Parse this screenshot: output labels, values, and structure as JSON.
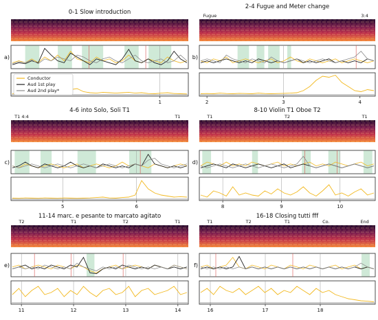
{
  "colors": {
    "conductor": "#f2b81e",
    "aud1": "#222222",
    "aud2": "#8c8c8c",
    "marker": "#d9534f",
    "band": "#cfe9d7",
    "grid": "#9a9a9a"
  },
  "legend": {
    "conductor": "Conductor",
    "aud1": "Aud 1st play",
    "aud2": "Aud 2nd play*"
  },
  "chart_data": [
    {
      "type": "line",
      "label": "a)",
      "title": "0-1 Slow introduction",
      "markers": [],
      "xlim": [
        -0.05,
        1.2
      ],
      "xticks": [
        1
      ],
      "bands": [
        [
          0.05,
          0.15
        ],
        [
          0.28,
          0.38
        ],
        [
          0.45,
          0.6
        ],
        [
          0.75,
          0.85
        ],
        [
          0.92,
          1.08
        ]
      ],
      "vlines": [
        0.5,
        0.9
      ],
      "grid_x": [
        1
      ],
      "series": [
        {
          "name": "Conductor",
          "values": [
            0.2,
            0.3,
            0.2,
            0.4,
            0.2,
            0.5,
            0.3,
            0.6,
            0.3,
            0.8,
            0.4,
            0.3,
            0.2,
            0.5,
            0.3,
            0.4,
            0.2,
            0.3,
            0.6,
            0.3,
            0.2,
            0.4,
            0.3,
            0.2,
            0.5,
            0.3,
            0.2,
            0.3
          ]
        },
        {
          "name": "Aud 1st play",
          "values": [
            0.1,
            0.2,
            0.15,
            0.3,
            0.2,
            0.95,
            0.6,
            0.3,
            0.2,
            0.7,
            0.5,
            0.3,
            0.1,
            0.4,
            0.3,
            0.2,
            0.1,
            0.4,
            0.9,
            0.3,
            0.2,
            0.4,
            0.2,
            0.1,
            0.3,
            0.8,
            0.4,
            0.2
          ]
        },
        {
          "name": "Aud 2nd play*",
          "values": [
            0.15,
            0.25,
            0.2,
            0.35,
            0.15,
            0.4,
            0.3,
            0.5,
            0.4,
            0.3,
            0.6,
            0.5,
            0.3,
            0.2,
            0.4,
            0.5,
            0.3,
            0.2,
            0.4,
            0.6,
            0.3,
            0.2,
            0.3,
            0.4,
            0.2,
            0.3,
            0.6,
            0.3
          ]
        }
      ],
      "activity": [
        0.05,
        0.08,
        0.1,
        0.06,
        0.12,
        0.08,
        0.1,
        0.15,
        0.2,
        0.25,
        0.3,
        0.15,
        0.1,
        0.08,
        0.12,
        0.1,
        0.08,
        0.1,
        0.12,
        0.08,
        0.1,
        0.06,
        0.05,
        0.08,
        0.1,
        0.06,
        0.05,
        0.04
      ]
    },
    {
      "type": "line",
      "label": "b)",
      "title": "2-4 Fugue and Meter change",
      "markers": [
        "Fugue",
        "3:4"
      ],
      "xlim": [
        1.9,
        4.2
      ],
      "xticks": [
        2,
        3,
        4
      ],
      "bands": [
        [
          2.4,
          2.55
        ],
        [
          2.65,
          2.75
        ],
        [
          2.8,
          2.95
        ],
        [
          3.05,
          3.1
        ]
      ],
      "vlines": [
        3.95
      ],
      "grid_x": [
        3
      ],
      "series": [
        {
          "name": "Conductor",
          "values": [
            0.3,
            0.2,
            0.4,
            0.3,
            0.5,
            0.2,
            0.3,
            0.4,
            0.3,
            0.2,
            0.3,
            0.4,
            0.2,
            0.3,
            0.5,
            0.3,
            0.2,
            0.4,
            0.3,
            0.2,
            0.3,
            0.4,
            0.2,
            0.3,
            0.4,
            0.3,
            0.2,
            0.3
          ]
        },
        {
          "name": "Aud 1st play",
          "values": [
            0.2,
            0.3,
            0.2,
            0.3,
            0.4,
            0.3,
            0.2,
            0.3,
            0.2,
            0.4,
            0.3,
            0.2,
            0.3,
            0.2,
            0.3,
            0.4,
            0.2,
            0.3,
            0.2,
            0.3,
            0.4,
            0.2,
            0.3,
            0.2,
            0.3,
            0.2,
            0.4,
            0.3
          ]
        },
        {
          "name": "Aud 2nd play*",
          "values": [
            0.3,
            0.4,
            0.3,
            0.2,
            0.6,
            0.4,
            0.3,
            0.2,
            0.4,
            0.3,
            0.2,
            0.5,
            0.3,
            0.2,
            0.3,
            0.4,
            0.3,
            0.2,
            0.3,
            0.4,
            0.3,
            0.2,
            0.3,
            0.4,
            0.5,
            0.8,
            0.4,
            0.3
          ]
        }
      ],
      "activity": [
        0.05,
        0.06,
        0.05,
        0.08,
        0.06,
        0.05,
        0.07,
        0.06,
        0.05,
        0.08,
        0.06,
        0.05,
        0.06,
        0.07,
        0.08,
        0.1,
        0.2,
        0.4,
        0.7,
        0.9,
        0.85,
        0.95,
        0.6,
        0.4,
        0.2,
        0.15,
        0.25,
        0.2
      ]
    },
    {
      "type": "line",
      "label": "c)",
      "title": "4-6 into Solo, Soli T1",
      "markers": [
        "T1 4:4",
        "T1"
      ],
      "xlim": [
        4.3,
        6.7
      ],
      "xticks": [
        5,
        6
      ],
      "bands": [
        [
          4.35,
          4.55
        ],
        [
          4.7,
          4.85
        ],
        [
          5.2,
          5.45
        ],
        [
          5.9,
          6.2
        ]
      ],
      "vlines": [
        6.05
      ],
      "grid_x": [
        5,
        6
      ],
      "series": [
        {
          "name": "Conductor",
          "values": [
            0.3,
            0.2,
            0.4,
            0.3,
            0.2,
            0.3,
            0.4,
            0.3,
            0.2,
            0.3,
            0.4,
            0.2,
            0.3,
            0.4,
            0.3,
            0.2,
            0.3,
            0.5,
            0.3,
            0.4,
            0.3,
            0.2,
            0.4,
            0.3,
            0.2,
            0.3,
            0.4,
            0.3
          ]
        },
        {
          "name": "Aud 1st play",
          "values": [
            0.2,
            0.3,
            0.5,
            0.3,
            0.2,
            0.4,
            0.3,
            0.2,
            0.3,
            0.5,
            0.3,
            0.2,
            0.3,
            0.2,
            0.4,
            0.3,
            0.2,
            0.3,
            0.2,
            0.4,
            0.3,
            0.9,
            0.4,
            0.3,
            0.2,
            0.3,
            0.2,
            0.3
          ]
        },
        {
          "name": "Aud 2nd play*",
          "values": [
            0.3,
            0.2,
            0.3,
            0.4,
            0.3,
            0.2,
            0.3,
            0.4,
            0.3,
            0.2,
            0.3,
            0.4,
            0.3,
            0.2,
            0.3,
            0.4,
            0.3,
            0.2,
            0.3,
            0.4,
            0.3,
            0.6,
            0.7,
            0.4,
            0.3,
            0.2,
            0.3,
            0.4
          ]
        }
      ],
      "activity": [
        0.05,
        0.04,
        0.06,
        0.05,
        0.04,
        0.06,
        0.05,
        0.04,
        0.06,
        0.05,
        0.04,
        0.05,
        0.06,
        0.08,
        0.1,
        0.06,
        0.05,
        0.08,
        0.1,
        0.2,
        0.9,
        0.5,
        0.3,
        0.2,
        0.15,
        0.1,
        0.12,
        0.1
      ]
    },
    {
      "type": "line",
      "label": "d)",
      "title": "8-10 Violin T1 Oboe T2",
      "markers": [
        "T1",
        "T2",
        "T1"
      ],
      "xlim": [
        7.6,
        10.6
      ],
      "xticks": [
        8,
        9,
        10
      ],
      "bands": [
        [
          7.65,
          7.8
        ],
        [
          8.5,
          8.6
        ],
        [
          9.35,
          9.5
        ],
        [
          9.8,
          10.0
        ],
        [
          10.4,
          10.55
        ]
      ],
      "vlines": [
        9.4,
        9.95
      ],
      "grid_x": [
        8,
        9,
        10
      ],
      "series": [
        {
          "name": "Conductor",
          "values": [
            0.3,
            0.5,
            0.4,
            0.3,
            0.5,
            0.3,
            0.4,
            0.3,
            0.5,
            0.4,
            0.3,
            0.4,
            0.5,
            0.3,
            0.4,
            0.3,
            0.4,
            0.5,
            0.3,
            0.4,
            0.3,
            0.5,
            0.4,
            0.3,
            0.4,
            0.5,
            0.3,
            0.4
          ]
        },
        {
          "name": "Aud 1st play",
          "values": [
            0.2,
            0.3,
            0.4,
            0.3,
            0.2,
            0.4,
            0.3,
            0.2,
            0.3,
            0.4,
            0.3,
            0.2,
            0.3,
            0.4,
            0.2,
            0.3,
            0.4,
            0.3,
            0.2,
            0.3,
            0.4,
            0.3,
            0.2,
            0.3,
            0.4,
            0.3,
            0.2,
            0.3
          ]
        },
        {
          "name": "Aud 2nd play*",
          "values": [
            0.3,
            0.2,
            0.3,
            0.4,
            0.3,
            0.2,
            0.3,
            0.4,
            0.3,
            0.2,
            0.3,
            0.4,
            0.3,
            0.2,
            0.3,
            0.4,
            0.8,
            0.3,
            0.2,
            0.3,
            0.4,
            0.3,
            0.2,
            0.3,
            0.4,
            0.3,
            0.2,
            0.3
          ]
        }
      ],
      "activity": [
        0.2,
        0.1,
        0.4,
        0.3,
        0.15,
        0.6,
        0.2,
        0.3,
        0.2,
        0.15,
        0.4,
        0.25,
        0.5,
        0.3,
        0.2,
        0.35,
        0.6,
        0.3,
        0.15,
        0.4,
        0.7,
        0.2,
        0.3,
        0.15,
        0.35,
        0.5,
        0.2,
        0.3
      ]
    },
    {
      "type": "line",
      "label": "e)",
      "title": "11-14 marc. e pesante to marcato agitato",
      "markers": [
        "T2",
        "T1",
        "T2",
        "T1"
      ],
      "xlim": [
        10.8,
        14.2
      ],
      "xticks": [
        11,
        12,
        13,
        14
      ],
      "bands": [
        [
          12.25,
          12.4
        ]
      ],
      "vlines": [
        11.25,
        11.95,
        12.95
      ],
      "grid_x": [
        11,
        12,
        13,
        14
      ],
      "series": [
        {
          "name": "Conductor",
          "values": [
            0.4,
            0.5,
            0.3,
            0.4,
            0.5,
            0.4,
            0.3,
            0.5,
            0.4,
            0.3,
            0.5,
            0.4,
            0.2,
            0.1,
            0.3,
            0.4,
            0.5,
            0.3,
            0.4,
            0.5,
            0.4,
            0.3,
            0.5,
            0.4,
            0.3,
            0.5,
            0.4,
            0.3
          ]
        },
        {
          "name": "Aud 1st play",
          "values": [
            0.3,
            0.4,
            0.5,
            0.3,
            0.4,
            0.3,
            0.5,
            0.4,
            0.3,
            0.5,
            0.4,
            0.9,
            0.1,
            0.05,
            0.3,
            0.4,
            0.3,
            0.5,
            0.4,
            0.3,
            0.4,
            0.3,
            0.5,
            0.4,
            0.3,
            0.4,
            0.3,
            0.4
          ]
        },
        {
          "name": "Aud 2nd play*",
          "values": [
            0.3,
            0.4,
            0.3,
            0.4,
            0.3,
            0.5,
            0.4,
            0.3,
            0.4,
            0.3,
            0.6,
            0.4,
            0.3,
            0.2,
            0.4,
            0.3,
            0.4,
            0.3,
            0.5,
            0.4,
            0.3,
            0.4,
            0.3,
            0.4,
            0.3,
            0.5,
            0.4,
            0.3
          ]
        }
      ],
      "activity": [
        0.4,
        0.7,
        0.3,
        0.6,
        0.8,
        0.4,
        0.5,
        0.7,
        0.3,
        0.6,
        0.4,
        0.8,
        0.5,
        0.3,
        0.6,
        0.7,
        0.4,
        0.5,
        0.8,
        0.3,
        0.6,
        0.7,
        0.4,
        0.5,
        0.6,
        0.8,
        0.4,
        0.5
      ]
    },
    {
      "type": "line",
      "label": "f)",
      "title": "16-18 Closing tutti fff",
      "markers": [
        "T1",
        "T2",
        "T1",
        "Co.",
        "End"
      ],
      "xlim": [
        15.8,
        19.0
      ],
      "xticks": [
        16,
        17,
        18
      ],
      "bands": [
        [
          18.75,
          18.9
        ]
      ],
      "vlines": [
        16.1,
        17.5
      ],
      "grid_x": [
        16,
        17,
        18
      ],
      "series": [
        {
          "name": "Conductor",
          "values": [
            0.4,
            0.5,
            0.3,
            0.4,
            0.5,
            0.9,
            0.4,
            0.3,
            0.5,
            0.4,
            0.3,
            0.5,
            0.4,
            0.3,
            0.5,
            0.4,
            0.3,
            0.5,
            0.4,
            0.3,
            0.4,
            0.5,
            0.3,
            0.4,
            0.5,
            0.3,
            0.4,
            0.3
          ]
        },
        {
          "name": "Aud 1st play",
          "values": [
            0.3,
            0.4,
            0.3,
            0.4,
            0.3,
            0.4,
            0.95,
            0.3,
            0.4,
            0.3,
            0.4,
            0.3,
            0.4,
            0.3,
            0.4,
            0.3,
            0.4,
            0.3,
            0.4,
            0.3,
            0.4,
            0.3,
            0.4,
            0.3,
            0.4,
            0.3,
            0.4,
            0.3
          ]
        },
        {
          "name": "Aud 2nd play*",
          "values": [
            0.4,
            0.3,
            0.4,
            0.3,
            0.4,
            0.3,
            0.4,
            0.3,
            0.4,
            0.3,
            0.4,
            0.3,
            0.4,
            0.3,
            0.4,
            0.3,
            0.4,
            0.3,
            0.4,
            0.3,
            0.4,
            0.3,
            0.4,
            0.3,
            0.4,
            0.6,
            0.4,
            0.3
          ]
        }
      ],
      "activity": [
        0.5,
        0.7,
        0.4,
        0.8,
        0.6,
        0.5,
        0.7,
        0.4,
        0.6,
        0.8,
        0.5,
        0.7,
        0.4,
        0.6,
        0.5,
        0.8,
        0.6,
        0.4,
        0.7,
        0.5,
        0.6,
        0.4,
        0.3,
        0.2,
        0.15,
        0.1,
        0.08,
        0.05
      ]
    }
  ]
}
